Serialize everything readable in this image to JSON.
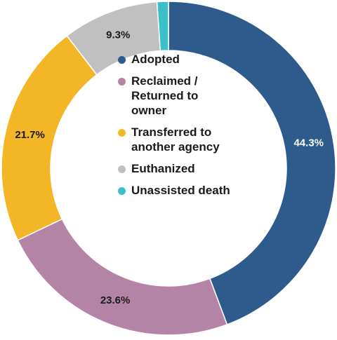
{
  "chart_data": {
    "type": "pie",
    "donut": true,
    "title": "",
    "categories": [
      "Adopted",
      "Reclaimed / Returned to owner",
      "Transferred to another agency",
      "Euthanized",
      "Unassisted death"
    ],
    "values": [
      44.3,
      23.6,
      21.7,
      9.3,
      1.1
    ],
    "data_labels": [
      "44.3%",
      "23.6%",
      "21.7%",
      "9.3%",
      ""
    ],
    "colors": [
      "#2f5b8c",
      "#b384a6",
      "#f2b626",
      "#c0c0c0",
      "#3bbfc9"
    ],
    "label_colors": [
      "#ffffff",
      "#1a1a1a",
      "#1a1a1a",
      "#1a1a1a",
      "#1a1a1a"
    ],
    "start_angle_deg": 0,
    "direction": "clockwise",
    "legend": {
      "position": "center",
      "items": [
        {
          "label": "Adopted",
          "color": "#2f5b8c"
        },
        {
          "label": "Reclaimed /\nReturned to\nowner",
          "color": "#b384a6"
        },
        {
          "label": "Transferred to\nanother agency",
          "color": "#f2b626"
        },
        {
          "label": "Euthanized",
          "color": "#c0c0c0"
        },
        {
          "label": "Unassisted death",
          "color": "#3bbfc9"
        }
      ]
    }
  }
}
